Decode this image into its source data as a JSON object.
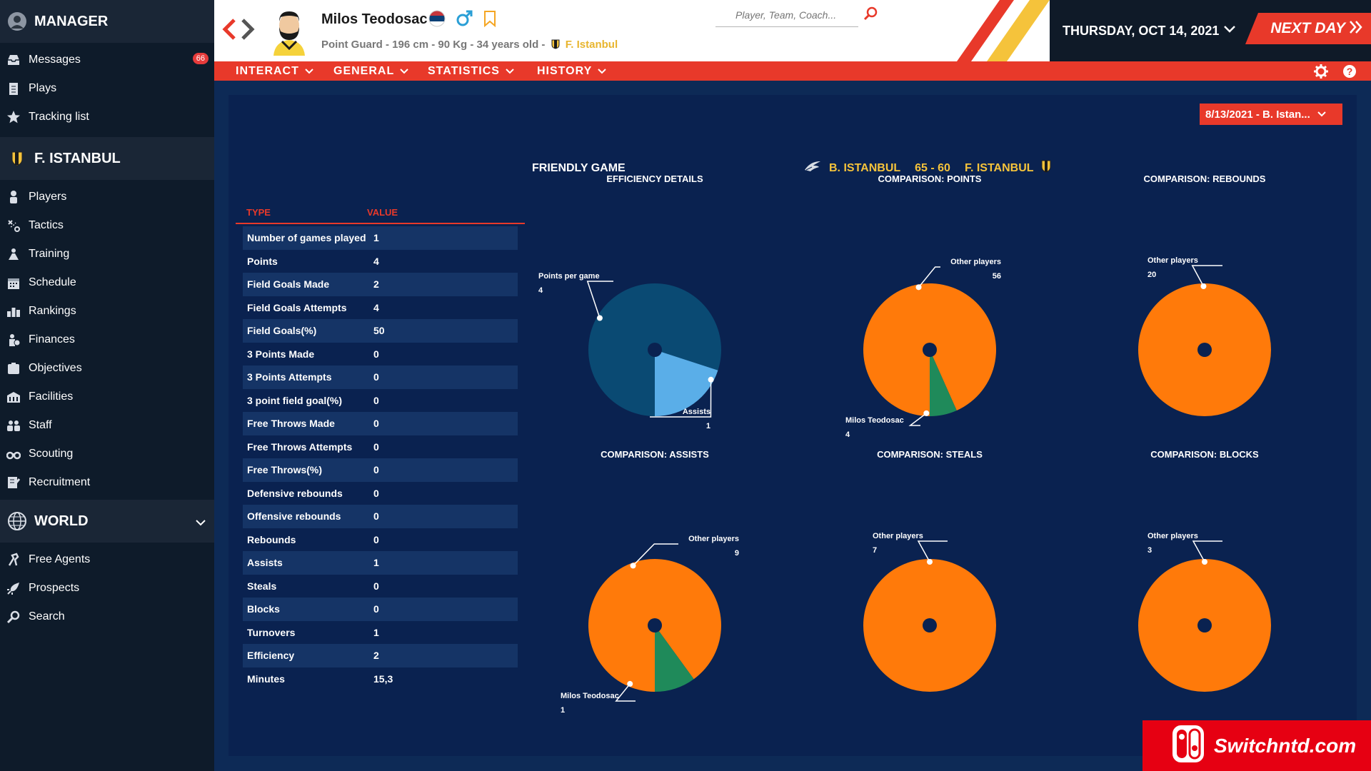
{
  "sidebar": {
    "manager_header": "MANAGER",
    "manager_items": [
      {
        "label": "Messages",
        "icon": "inbox-icon",
        "badge": "66"
      },
      {
        "label": "Plays",
        "icon": "clipboard-icon"
      },
      {
        "label": "Tracking list",
        "icon": "star-icon"
      }
    ],
    "team_header": "F. ISTANBUL",
    "team_items": [
      {
        "label": "Players",
        "icon": "players-icon"
      },
      {
        "label": "Tactics",
        "icon": "tactics-icon"
      },
      {
        "label": "Training",
        "icon": "training-icon"
      },
      {
        "label": "Schedule",
        "icon": "calendar-icon"
      },
      {
        "label": "Rankings",
        "icon": "rankings-icon"
      },
      {
        "label": "Finances",
        "icon": "finances-icon"
      },
      {
        "label": "Objectives",
        "icon": "objectives-icon"
      },
      {
        "label": "Facilities",
        "icon": "facilities-icon"
      },
      {
        "label": "Staff",
        "icon": "staff-icon"
      },
      {
        "label": "Scouting",
        "icon": "binoculars-icon"
      },
      {
        "label": "Recruitment",
        "icon": "recruitment-icon"
      }
    ],
    "world_header": "WORLD",
    "world_items": [
      {
        "label": "Free Agents",
        "icon": "free-agents-icon"
      },
      {
        "label": "Prospects",
        "icon": "rocket-icon"
      },
      {
        "label": "Search",
        "icon": "search-icon"
      }
    ]
  },
  "header": {
    "player_name": "Milos Teodosac",
    "player_info": "Point Guard - 196 cm - 90 Kg - 34 years old -",
    "player_team": "F. Istanbul",
    "search_placeholder": "Player, Team, Coach...",
    "date": "THURSDAY, OCT 14, 2021",
    "next_day": "NEXT DAY"
  },
  "menu": [
    "INTERACT",
    "GENERAL",
    "STATISTICS",
    "HISTORY"
  ],
  "match": {
    "selector": "8/13/2021 - B. Istan...",
    "game_type": "FRIENDLY GAME",
    "home_team": "B. ISTANBUL",
    "score": "65 - 60",
    "away_team": "F. ISTANBUL"
  },
  "table": {
    "headers": {
      "type": "TYPE",
      "value": "VALUE"
    },
    "rows": [
      {
        "type": "Number of games played",
        "value": "1"
      },
      {
        "type": "Points",
        "value": "4"
      },
      {
        "type": "Field Goals Made",
        "value": "2"
      },
      {
        "type": "Field Goals Attempts",
        "value": "4"
      },
      {
        "type": "Field Goals(%)",
        "value": "50"
      },
      {
        "type": "3 Points Made",
        "value": "0"
      },
      {
        "type": "3 Points Attempts",
        "value": "0"
      },
      {
        "type": "3 point field goal(%)",
        "value": "0"
      },
      {
        "type": "Free Throws Made",
        "value": "0"
      },
      {
        "type": "Free Throws Attempts",
        "value": "0"
      },
      {
        "type": "Free Throws(%)",
        "value": "0"
      },
      {
        "type": "Defensive rebounds",
        "value": "0"
      },
      {
        "type": "Offensive rebounds",
        "value": "0"
      },
      {
        "type": "Rebounds",
        "value": "0"
      },
      {
        "type": "Assists",
        "value": "1"
      },
      {
        "type": "Steals",
        "value": "0"
      },
      {
        "type": "Blocks",
        "value": "0"
      },
      {
        "type": "Turnovers",
        "value": "1"
      },
      {
        "type": "Efficiency",
        "value": "2"
      },
      {
        "type": "Minutes",
        "value": "15,3"
      }
    ]
  },
  "chart_data": [
    {
      "type": "pie",
      "title": "EFFICIENCY DETAILS",
      "slices": [
        {
          "name": "Points per game",
          "value": 4,
          "color": "#0a4a73"
        },
        {
          "name": "Assists",
          "value": 1,
          "color": "#5aaee8"
        }
      ]
    },
    {
      "type": "pie",
      "title": "COMPARISON: POINTS",
      "slices": [
        {
          "name": "Other players",
          "value": 56,
          "color": "#ff7a0a"
        },
        {
          "name": "Milos Teodosac",
          "value": 4,
          "color": "#1f8a5a"
        }
      ]
    },
    {
      "type": "pie",
      "title": "COMPARISON: REBOUNDS",
      "slices": [
        {
          "name": "Other players",
          "value": 20,
          "color": "#ff7a0a"
        }
      ]
    },
    {
      "type": "pie",
      "title": "COMPARISON: ASSISTS",
      "slices": [
        {
          "name": "Other players",
          "value": 9,
          "color": "#ff7a0a"
        },
        {
          "name": "Milos Teodosac",
          "value": 1,
          "color": "#1f8a5a"
        }
      ]
    },
    {
      "type": "pie",
      "title": "COMPARISON: STEALS",
      "slices": [
        {
          "name": "Other players",
          "value": 7,
          "color": "#ff7a0a"
        }
      ]
    },
    {
      "type": "pie",
      "title": "COMPARISON: BLOCKS",
      "slices": [
        {
          "name": "Other players",
          "value": 3,
          "color": "#ff7a0a"
        }
      ]
    }
  ],
  "watermark": "Switchntd.com",
  "colors": {
    "accent": "#e8392a",
    "orange": "#ff7a0a",
    "green": "#1f8a5a",
    "gold": "#f5c33b"
  }
}
